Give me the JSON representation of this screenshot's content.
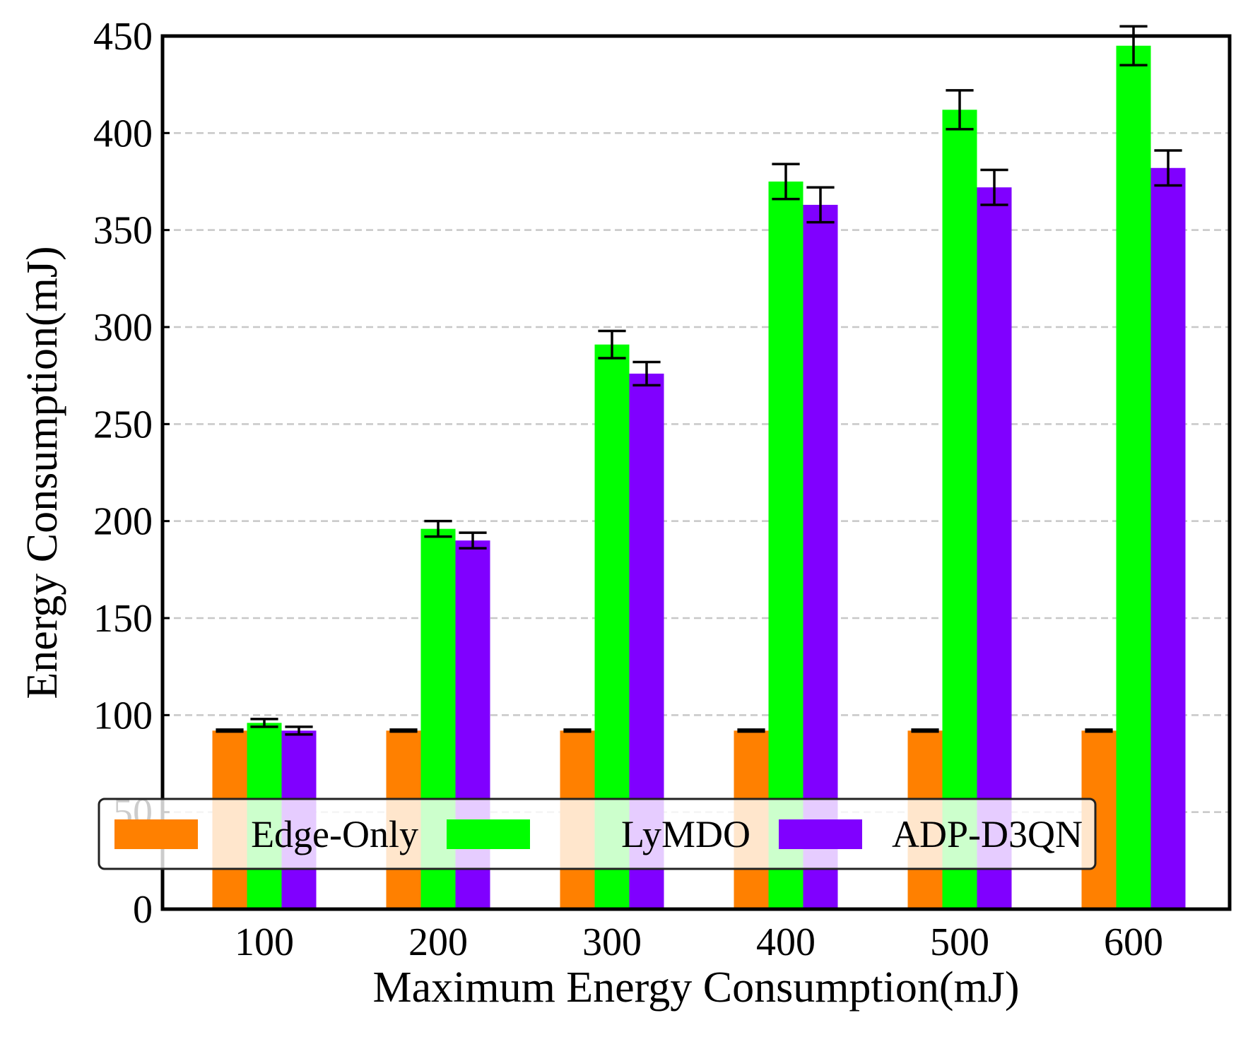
{
  "chart_data": {
    "type": "bar",
    "x_label": "Maximum Energy Consumption(mJ)",
    "y_label": "Energy Consumption(mJ)",
    "categories": [
      "100",
      "200",
      "300",
      "400",
      "500",
      "600"
    ],
    "series": [
      {
        "name": "Edge-Only",
        "color": "#ff8000",
        "values": [
          92,
          92,
          92,
          92,
          92,
          92
        ],
        "errors": [
          0.5,
          0.5,
          0.5,
          0.5,
          0.5,
          0.5
        ]
      },
      {
        "name": "LyMDO",
        "color": "#00ff00",
        "values": [
          96,
          196,
          291,
          375,
          412,
          445
        ],
        "errors": [
          2,
          4,
          7,
          9,
          10,
          10
        ]
      },
      {
        "name": "ADP-D3QN",
        "color": "#8000ff",
        "values": [
          92,
          190,
          276,
          363,
          372,
          382
        ],
        "errors": [
          2,
          4,
          6,
          9,
          9,
          9
        ]
      }
    ],
    "ylim": [
      0,
      450
    ],
    "yticks": [
      0,
      50,
      100,
      150,
      200,
      250,
      300,
      350,
      400,
      450
    ],
    "grid": true,
    "legend": "lower center"
  }
}
